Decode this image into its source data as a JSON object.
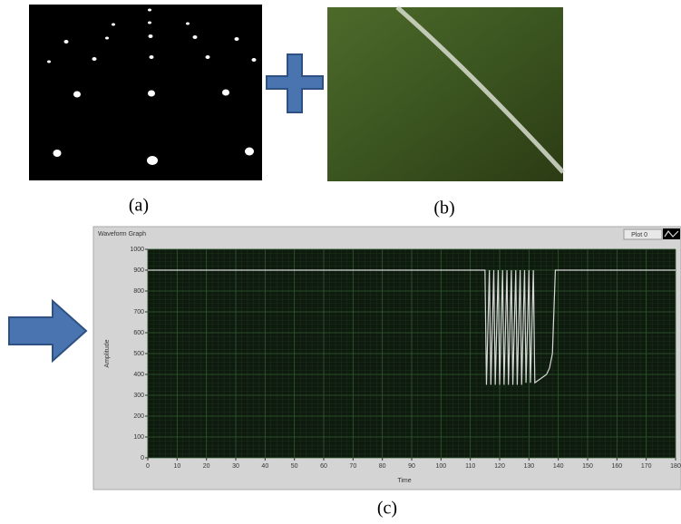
{
  "captions": [
    "(a)",
    "(b)",
    "(c)"
  ],
  "chart_data": {
    "type": "line",
    "title": "Waveform Graph",
    "x_label": "Time",
    "y_label": "Amplitude",
    "x": [
      0,
      115,
      115.5,
      116.5,
      117,
      118,
      118.5,
      119.5,
      120,
      121,
      121.5,
      122.5,
      123,
      124,
      124.5,
      125.5,
      126,
      127,
      127.5,
      128.5,
      129,
      130,
      130.5,
      131.5,
      132,
      133,
      134,
      136,
      137,
      138,
      139,
      180
    ],
    "series": [
      {
        "name": "Plot 0",
        "color": "#d8d8d8",
        "values": [
          900,
          900,
          350,
          900,
          350,
          900,
          350,
          900,
          350,
          900,
          350,
          900,
          350,
          900,
          350,
          900,
          350,
          900,
          350,
          900,
          360,
          900,
          360,
          900,
          360,
          370,
          380,
          400,
          430,
          500,
          900,
          900
        ]
      }
    ],
    "xlim": [
      0,
      180
    ],
    "xticks": [
      0,
      10,
      20,
      30,
      40,
      50,
      60,
      70,
      80,
      90,
      100,
      110,
      120,
      130,
      140,
      150,
      160,
      170,
      180
    ],
    "ylim": [
      0,
      1000
    ],
    "yticks": [
      0,
      100,
      200,
      300,
      400,
      500,
      600,
      700,
      800,
      900,
      1000
    ],
    "grid": true,
    "legend": "top-right"
  }
}
